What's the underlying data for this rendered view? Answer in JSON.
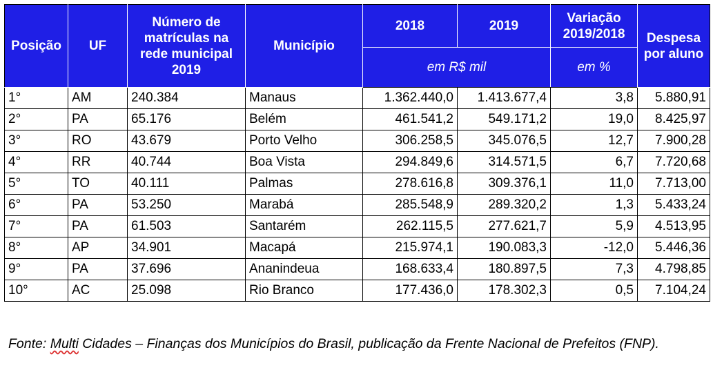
{
  "table": {
    "headers": {
      "posicao": "Posição",
      "uf": "UF",
      "matriculas": "Número de matrículas na rede municipal 2019",
      "municipio": "Município",
      "y2018": "2018",
      "y2019": "2019",
      "variacao": "Variação 2019/2018",
      "despesa": "Despesa por aluno",
      "unit_values": "em R$ mil",
      "unit_percent": "em %"
    },
    "rows": [
      {
        "posicao": "1°",
        "uf": "AM",
        "matriculas": "240.384",
        "municipio": "Manaus",
        "v2018": "1.362.440,0",
        "v2019": "1.413.677,4",
        "variacao": "3,8",
        "despesa": "5.880,91"
      },
      {
        "posicao": "2°",
        "uf": "PA",
        "matriculas": "65.176",
        "municipio": "Belém",
        "v2018": "461.541,2",
        "v2019": "549.171,2",
        "variacao": "19,0",
        "despesa": "8.425,97"
      },
      {
        "posicao": "3°",
        "uf": "RO",
        "matriculas": "43.679",
        "municipio": "Porto Velho",
        "v2018": "306.258,5",
        "v2019": "345.076,5",
        "variacao": "12,7",
        "despesa": "7.900,28"
      },
      {
        "posicao": "4°",
        "uf": "RR",
        "matriculas": "40.744",
        "municipio": "Boa Vista",
        "v2018": "294.849,6",
        "v2019": "314.571,5",
        "variacao": "6,7",
        "despesa": "7.720,68"
      },
      {
        "posicao": "5°",
        "uf": "TO",
        "matriculas": "40.111",
        "municipio": "Palmas",
        "v2018": "278.616,8",
        "v2019": "309.376,1",
        "variacao": "11,0",
        "despesa": "7.713,00"
      },
      {
        "posicao": "6°",
        "uf": "PA",
        "matriculas": "53.250",
        "municipio": "Marabá",
        "v2018": "285.548,9",
        "v2019": "289.320,2",
        "variacao": "1,3",
        "despesa": "5.433,24"
      },
      {
        "posicao": "7°",
        "uf": "PA",
        "matriculas": "61.503",
        "municipio": "Santarém",
        "v2018": "262.115,5",
        "v2019": "277.621,7",
        "variacao": "5,9",
        "despesa": "4.513,95"
      },
      {
        "posicao": "8°",
        "uf": "AP",
        "matriculas": "34.901",
        "municipio": "Macapá",
        "v2018": "215.974,1",
        "v2019": "190.083,3",
        "variacao": "-12,0",
        "despesa": "5.446,36"
      },
      {
        "posicao": "9°",
        "uf": "PA",
        "matriculas": "37.696",
        "municipio": "Ananindeua",
        "v2018": "168.633,4",
        "v2019": "180.897,5",
        "variacao": "7,3",
        "despesa": "4.798,85"
      },
      {
        "posicao": "10°",
        "uf": "AC",
        "matriculas": "25.098",
        "municipio": "Rio Branco",
        "v2018": "177.436,0",
        "v2019": "178.302,3",
        "variacao": "0,5",
        "despesa": "7.104,24"
      }
    ]
  },
  "source": {
    "prefix": "Fonte: ",
    "underlined": "Multi",
    "rest": " Cidades – Finanças dos Municípios do Brasil, publicação da Frente Nacional de Prefeitos (FNP)."
  }
}
